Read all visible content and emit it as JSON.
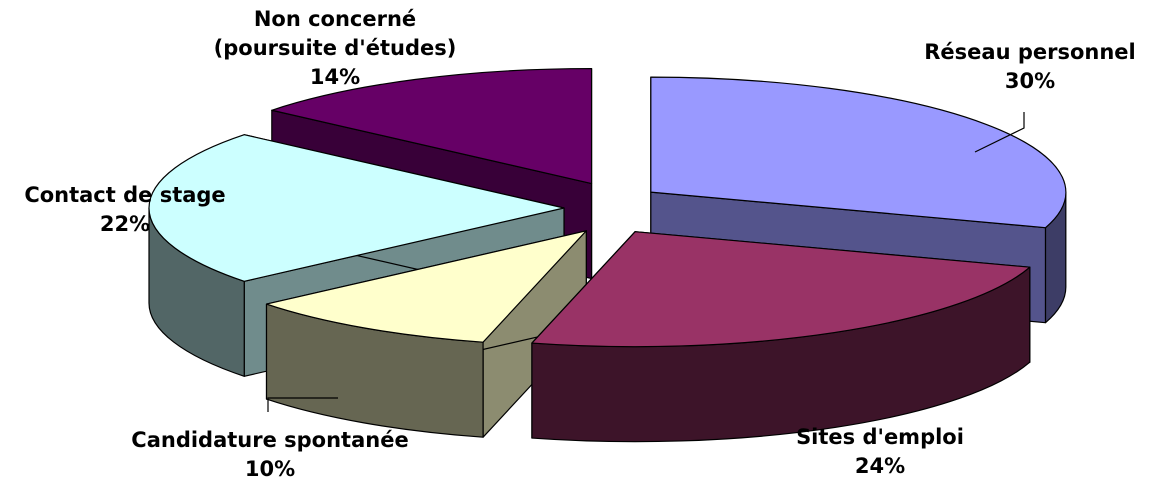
{
  "chart_data": {
    "type": "pie",
    "style": "3d-exploded",
    "title": "",
    "legend": "none",
    "slices": [
      {
        "name": "Réseau personnel",
        "lines": [
          "Réseau personnel"
        ],
        "percent_label": "30%",
        "value": 30,
        "color": "#9999FF"
      },
      {
        "name": "Sites d'emploi",
        "lines": [
          "Sites d'emploi"
        ],
        "percent_label": "24%",
        "value": 24,
        "color": "#993366"
      },
      {
        "name": "Candidature spontanée",
        "lines": [
          "Candidature spontanée"
        ],
        "percent_label": "10%",
        "value": 10,
        "color": "#FFFFCC"
      },
      {
        "name": "Contact de stage",
        "lines": [
          "Contact de stage"
        ],
        "percent_label": "22%",
        "value": 22,
        "color": "#CCFFFF"
      },
      {
        "name": "Non concerné (poursuite d'études)",
        "lines": [
          "Non concerné",
          "(poursuite d'études)"
        ],
        "percent_label": "14%",
        "value": 14,
        "color": "#660066"
      }
    ]
  }
}
